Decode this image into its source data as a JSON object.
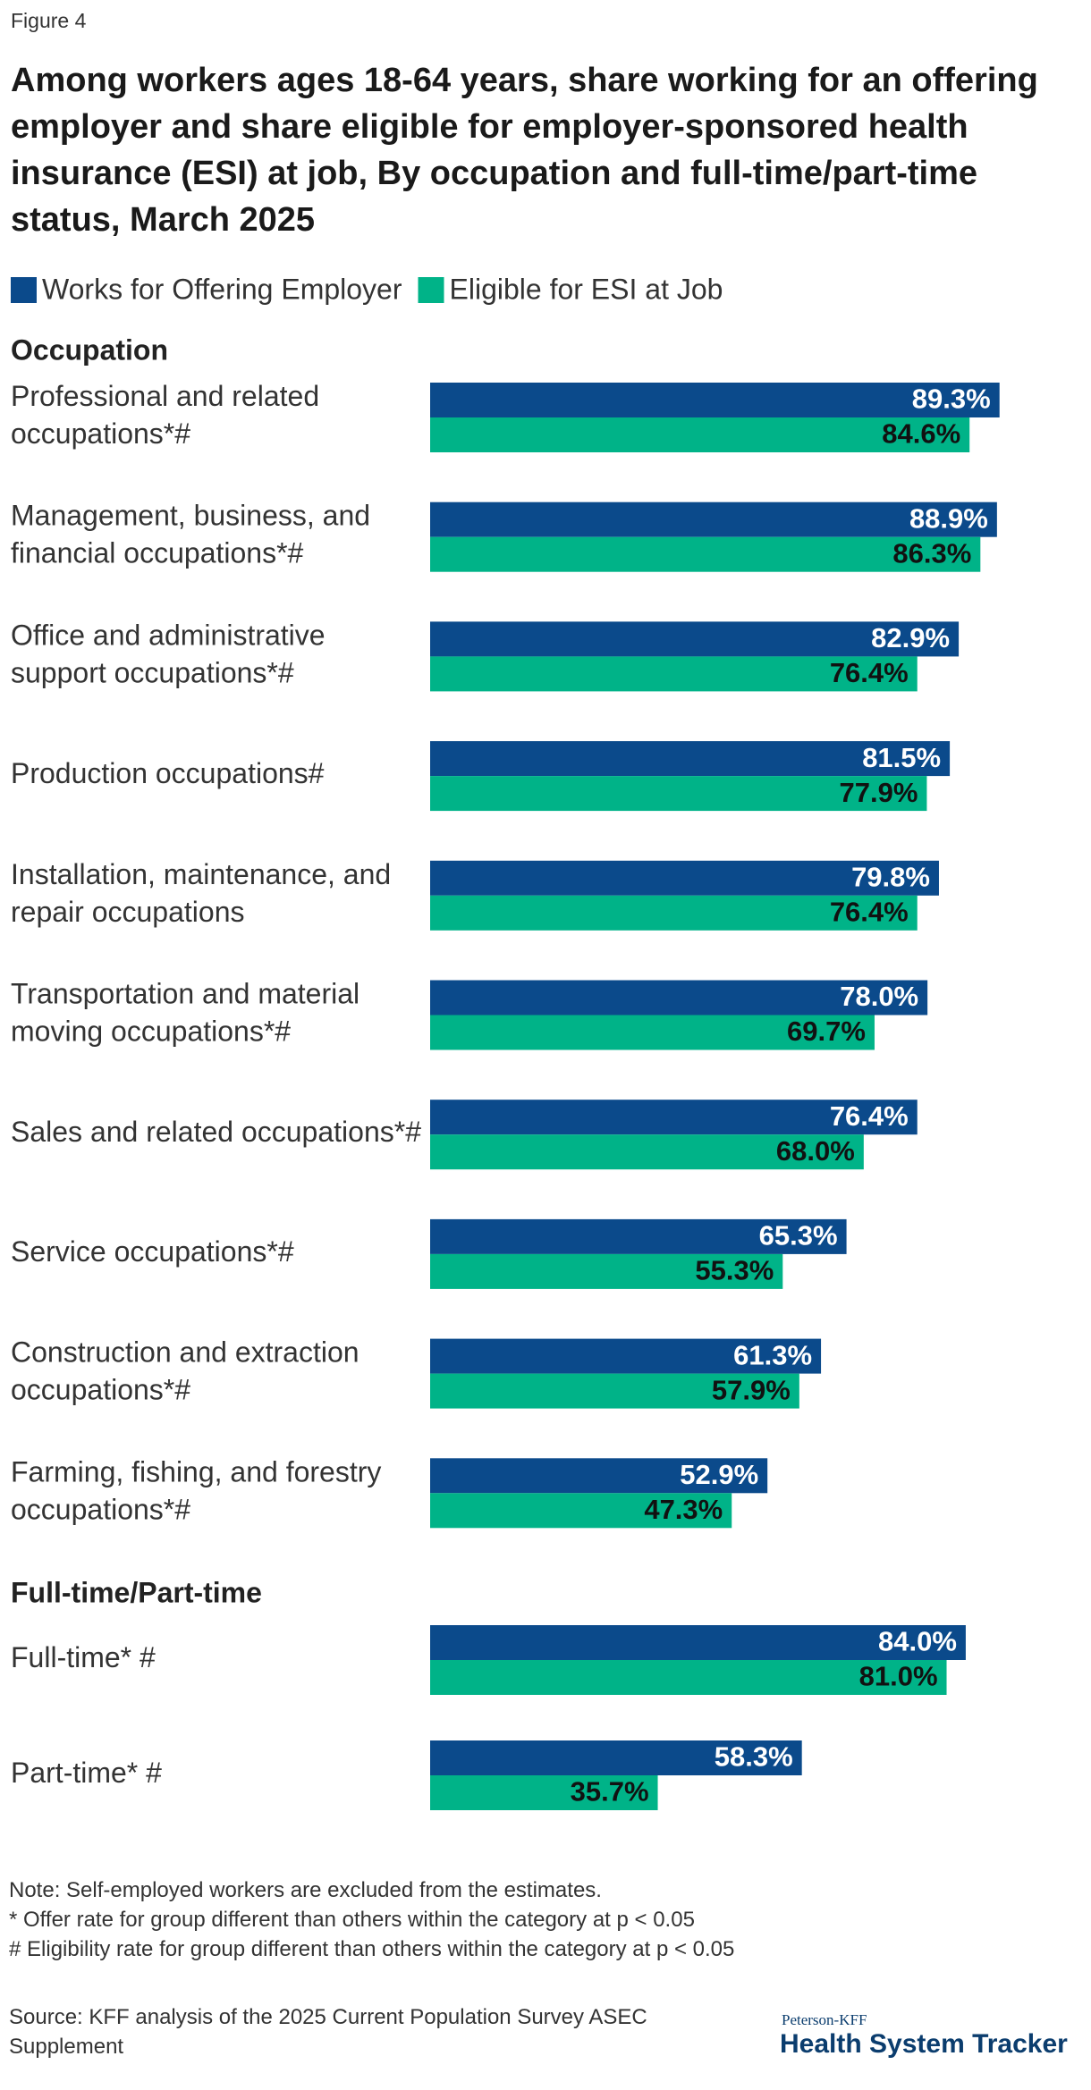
{
  "chart_data": {
    "type": "bar",
    "orientation": "horizontal",
    "figure_label": "Figure 4",
    "title": "Among workers ages 18-64 years, share working for an offering employer and share eligible for employer-sponsored health insurance (ESI) at job, By occupation and full-time/part-time status, March 2025",
    "xlim": [
      0,
      100
    ],
    "series": [
      {
        "name": "Works for Offering Employer",
        "color": "#0b4a8b",
        "label_color": "#ffffff"
      },
      {
        "name": "Eligible for ESI at Job",
        "color": "#00b388",
        "label_color": "#111111"
      }
    ],
    "groups": [
      {
        "heading": "Occupation",
        "categories": [
          "Professional and related occupations*#",
          "Management, business, and financial occupations*#",
          "Office and administrative support occupations*#",
          "Production occupations#",
          "Installation, maintenance, and repair occupations",
          "Transportation and material moving occupations*#",
          "Sales and related occupations*#",
          "Service occupations*#",
          "Construction and extraction occupations*#",
          "Farming, fishing, and forestry occupations*#"
        ],
        "series": [
          {
            "values": [
              89.3,
              88.9,
              82.9,
              81.5,
              79.8,
              78.0,
              76.4,
              65.3,
              61.3,
              52.9
            ],
            "value_labels": [
              "89.3%",
              "88.9%",
              "82.9%",
              "81.5%",
              "79.8%",
              "78.0%",
              "76.4%",
              "65.3%",
              "61.3%",
              "52.9%"
            ]
          },
          {
            "values": [
              84.6,
              86.3,
              76.4,
              77.9,
              76.4,
              69.7,
              68.0,
              55.3,
              57.9,
              47.3
            ],
            "value_labels": [
              "84.6%",
              "86.3%",
              "76.4%",
              "77.9%",
              "76.4%",
              "69.7%",
              "68.0%",
              "55.3%",
              "57.9%",
              "47.3%"
            ]
          }
        ]
      },
      {
        "heading": "Full-time/Part-time",
        "categories": [
          "Full-time* #",
          "Part-time* #"
        ],
        "series": [
          {
            "values": [
              84.0,
              58.3
            ],
            "value_labels": [
              "84.0%",
              "58.3%"
            ]
          },
          {
            "values": [
              81.0,
              35.7
            ],
            "value_labels": [
              "81.0%",
              "35.7%"
            ]
          }
        ]
      }
    ],
    "notes": [
      "Note: Self-employed workers are excluded from the estimates.",
      "* Offer rate for group different than others within the category at p < 0.05",
      "# Eligibility rate for group different than others within the category at p < 0.05"
    ],
    "source": "Source: KFF analysis of the 2025 Current Population Survey ASEC Supplement",
    "logo": {
      "top": "Peterson-KFF",
      "bottom": "Health System Tracker"
    }
  }
}
